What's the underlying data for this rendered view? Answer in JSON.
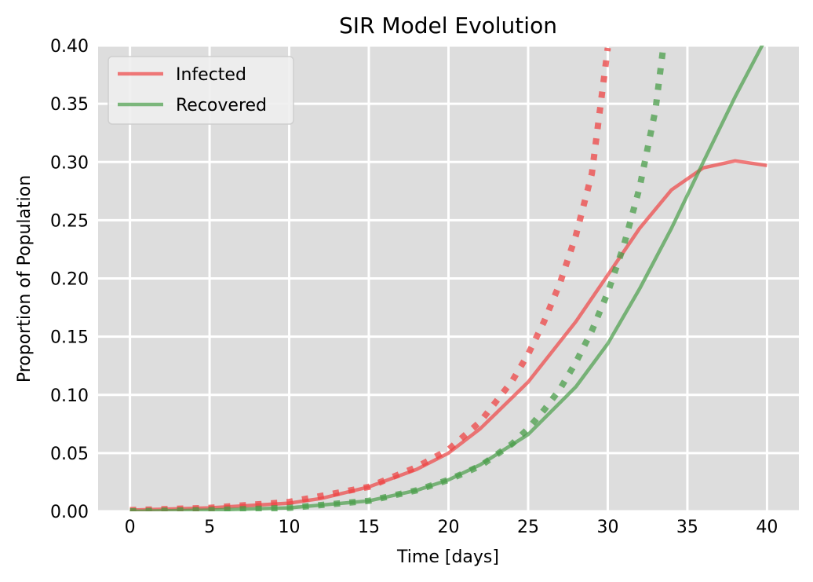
{
  "chart_data": {
    "type": "line",
    "title": "SIR Model Evolution",
    "xlabel": "Time [days]",
    "ylabel": "Proportion of Population",
    "xlim": [
      -2,
      42
    ],
    "ylim": [
      0,
      0.4
    ],
    "xticks": [
      0,
      5,
      10,
      15,
      20,
      25,
      30,
      35,
      40
    ],
    "yticks": [
      0.0,
      0.05,
      0.1,
      0.15,
      0.2,
      0.25,
      0.3,
      0.35,
      0.4
    ],
    "xtick_labels": [
      "0",
      "5",
      "10",
      "15",
      "20",
      "25",
      "30",
      "35",
      "40"
    ],
    "ytick_labels": [
      "0.00",
      "0.05",
      "0.10",
      "0.15",
      "0.20",
      "0.25",
      "0.30",
      "0.35",
      "0.40"
    ],
    "grid": true,
    "legend": {
      "position": "top-left",
      "entries": [
        "Infected",
        "Recovered"
      ]
    },
    "series": [
      {
        "name": "Infected",
        "style": "solid",
        "color": "#ee4444",
        "x": [
          0,
          5,
          10,
          12,
          15,
          18,
          20,
          22,
          25,
          28,
          30,
          32,
          34,
          36,
          38,
          40
        ],
        "y": [
          0.001,
          0.003,
          0.007,
          0.011,
          0.021,
          0.036,
          0.05,
          0.071,
          0.111,
          0.163,
          0.203,
          0.243,
          0.276,
          0.295,
          0.301,
          0.297
        ]
      },
      {
        "name": "Recovered",
        "style": "solid",
        "color": "#4a9e4a",
        "x": [
          0,
          5,
          10,
          15,
          18,
          20,
          22,
          25,
          28,
          30,
          32,
          34,
          36,
          38,
          40
        ],
        "y": [
          0.0,
          0.001,
          0.003,
          0.009,
          0.018,
          0.027,
          0.04,
          0.066,
          0.107,
          0.144,
          0.191,
          0.243,
          0.3,
          0.356,
          0.408
        ]
      },
      {
        "style": "dotted",
        "color": "#ee4444",
        "x": [
          0,
          5,
          10,
          15,
          18,
          20,
          22,
          24,
          25,
          26,
          27,
          28,
          29,
          30
        ],
        "y": [
          0.001,
          0.003,
          0.008,
          0.021,
          0.038,
          0.053,
          0.077,
          0.112,
          0.135,
          0.163,
          0.196,
          0.237,
          0.29,
          0.398
        ]
      },
      {
        "style": "dotted",
        "color": "#4a9e4a",
        "x": [
          0,
          5,
          10,
          15,
          18,
          20,
          22,
          24,
          25,
          26,
          27,
          28,
          29,
          30,
          31,
          32,
          33,
          33.5
        ],
        "y": [
          0.0,
          0.001,
          0.003,
          0.009,
          0.018,
          0.027,
          0.039,
          0.058,
          0.071,
          0.087,
          0.105,
          0.128,
          0.155,
          0.188,
          0.228,
          0.278,
          0.345,
          0.4
        ]
      }
    ]
  }
}
